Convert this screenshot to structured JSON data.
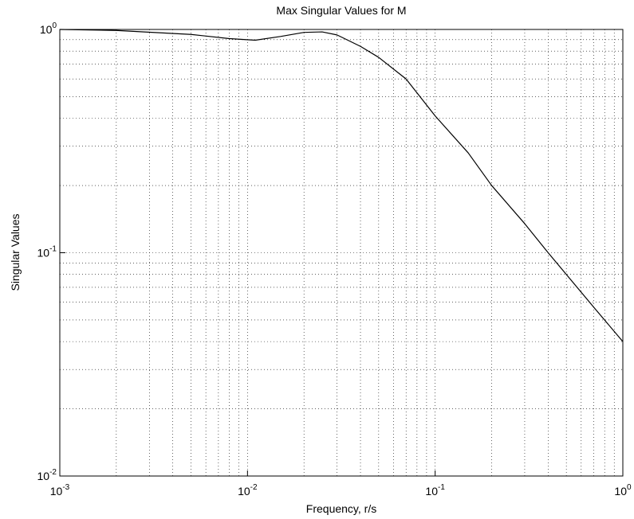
{
  "chart_data": {
    "type": "line",
    "title": "Max Singular Values for M",
    "xlabel": "Frequency, r/s",
    "ylabel": "Singular Values",
    "xscale": "log",
    "yscale": "log",
    "grid": true,
    "minor_grid": true,
    "xlim": [
      0.001,
      1
    ],
    "ylim": [
      0.01,
      1
    ],
    "xticks": [
      {
        "value": 0.001,
        "label": "10^-3"
      },
      {
        "value": 0.01,
        "label": "10^-2"
      },
      {
        "value": 0.1,
        "label": "10^-1"
      },
      {
        "value": 1,
        "label": "10^0"
      }
    ],
    "yticks": [
      {
        "value": 0.01,
        "label": "10^-2"
      },
      {
        "value": 0.1,
        "label": "10^-1"
      },
      {
        "value": 1,
        "label": "10^0"
      }
    ],
    "color": "#000000",
    "x": [
      0.001,
      0.002,
      0.005,
      0.008,
      0.011,
      0.015,
      0.02,
      0.025,
      0.03,
      0.04,
      0.05,
      0.07,
      0.1,
      0.15,
      0.2,
      0.3,
      0.4,
      0.7,
      1
    ],
    "values": [
      1.0,
      0.99,
      0.95,
      0.91,
      0.895,
      0.93,
      0.97,
      0.975,
      0.945,
      0.84,
      0.75,
      0.6,
      0.41,
      0.28,
      0.2,
      0.135,
      0.1,
      0.057,
      0.04
    ]
  }
}
